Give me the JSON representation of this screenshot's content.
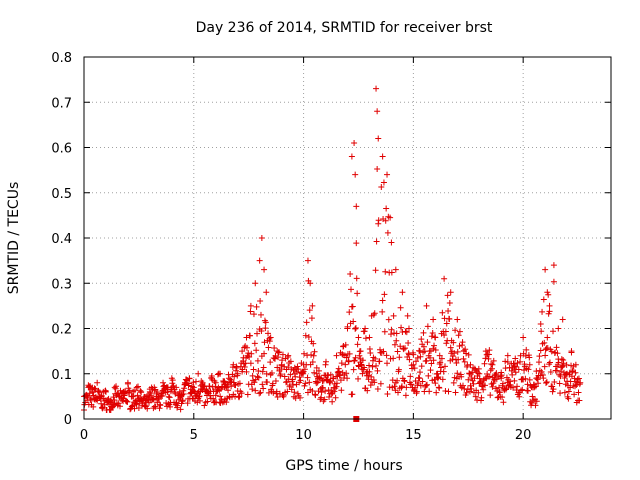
{
  "chart_data": {
    "type": "scatter",
    "title": "Day 236 of 2014, SRMTID for receiver brst",
    "xlabel": "GPS time / hours",
    "ylabel": "SRMTID / TECUs",
    "xlim": [
      0,
      24
    ],
    "ylim": [
      0,
      0.8
    ],
    "xticks": [
      0,
      5,
      10,
      15,
      20
    ],
    "xtick_labels": [
      "0",
      "5",
      "10",
      "15",
      "20"
    ],
    "yticks": [
      0,
      0.1,
      0.2,
      0.3,
      0.4,
      0.5,
      0.6,
      0.7,
      0.8
    ],
    "ytick_labels": [
      "0",
      "0.1",
      "0.2",
      "0.3",
      "0.4",
      "0.5",
      "0.6",
      "0.7",
      "0.8"
    ],
    "grid": true,
    "marker": "plus",
    "color": "#e00000",
    "series": [
      {
        "name": "SRMTID",
        "x": [
          0.0,
          0.2,
          0.4,
          0.6,
          0.8,
          1.0,
          1.2,
          1.4,
          1.6,
          1.8,
          2.0,
          2.2,
          2.4,
          2.6,
          2.8,
          3.0,
          3.2,
          3.4,
          3.6,
          3.8,
          4.0,
          4.2,
          4.4,
          4.6,
          4.8,
          5.0,
          5.2,
          5.4,
          5.6,
          5.8,
          6.0,
          6.2,
          6.4,
          6.6,
          6.8,
          7.0,
          7.2,
          7.4,
          7.6,
          7.8,
          8.0,
          8.1,
          8.2,
          8.3,
          8.5,
          8.8,
          9.0,
          9.3,
          9.6,
          10.0,
          10.2,
          10.3,
          10.4,
          10.6,
          10.8,
          11.0,
          11.2,
          11.5,
          11.8,
          12.0,
          12.2,
          12.3,
          12.35,
          12.4,
          12.5,
          12.6,
          12.8,
          13.0,
          13.2,
          13.3,
          13.35,
          13.4,
          13.6,
          13.8,
          14.0,
          14.2,
          14.5,
          14.8,
          15.0,
          15.3,
          15.6,
          15.9,
          16.0,
          16.1,
          16.2,
          16.4,
          16.7,
          17.0,
          17.3,
          17.6,
          18.0,
          18.3,
          18.6,
          19.0,
          19.3,
          19.6,
          20.0,
          20.3,
          20.5,
          20.6,
          20.8,
          21.0,
          21.1,
          21.2,
          21.4,
          21.6,
          21.8,
          22.0,
          22.2,
          22.4,
          22.6
        ],
        "y": [
          0.05,
          0.07,
          0.06,
          0.08,
          0.05,
          0.06,
          0.04,
          0.07,
          0.05,
          0.06,
          0.08,
          0.05,
          0.07,
          0.06,
          0.04,
          0.06,
          0.07,
          0.05,
          0.08,
          0.06,
          0.09,
          0.07,
          0.05,
          0.08,
          0.09,
          0.07,
          0.1,
          0.08,
          0.06,
          0.09,
          0.08,
          0.1,
          0.07,
          0.09,
          0.12,
          0.1,
          0.15,
          0.18,
          0.25,
          0.3,
          0.35,
          0.4,
          0.33,
          0.28,
          0.18,
          0.15,
          0.12,
          0.14,
          0.1,
          0.12,
          0.35,
          0.3,
          0.25,
          0.1,
          0.09,
          0.12,
          0.08,
          0.14,
          0.16,
          0.2,
          0.58,
          0.61,
          0.54,
          0.47,
          0.18,
          0.15,
          0.2,
          0.18,
          0.23,
          0.73,
          0.68,
          0.62,
          0.58,
          0.54,
          0.39,
          0.33,
          0.28,
          0.2,
          0.12,
          0.15,
          0.25,
          0.22,
          0.18,
          0.1,
          0.14,
          0.31,
          0.28,
          0.22,
          0.15,
          0.12,
          0.1,
          0.15,
          0.12,
          0.09,
          0.14,
          0.11,
          0.18,
          0.12,
          0.07,
          0.09,
          0.21,
          0.33,
          0.28,
          0.25,
          0.34,
          0.2,
          0.22,
          0.1,
          0.15,
          0.12,
          0.08
        ]
      }
    ],
    "highlight_point": {
      "x": 12.4,
      "y": 0.0
    }
  }
}
